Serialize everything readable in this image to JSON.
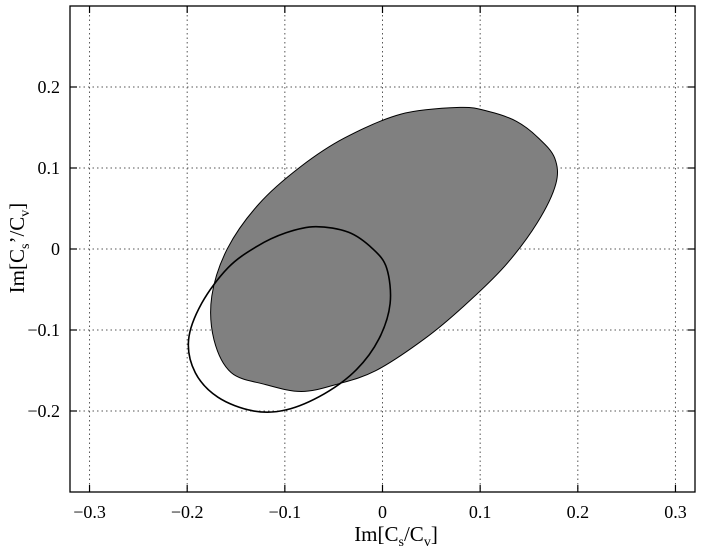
{
  "chart_data": {
    "type": "scatter",
    "title": "",
    "xlabel": {
      "prefix": "Im[C",
      "sub1": "s",
      "mid": "/C",
      "sub2": "v",
      "suffix": "]"
    },
    "ylabel": {
      "prefix": "Im[C",
      "sub1": "s",
      "mid": "’/C",
      "sub2": "v",
      "suffix": "]"
    },
    "xlim": [
      -0.32,
      0.32
    ],
    "ylim": [
      -0.3,
      0.3
    ],
    "grid": true,
    "grid_style": "dotted",
    "xticks": [
      -0.3,
      -0.2,
      -0.1,
      0,
      0.1,
      0.2,
      0.3
    ],
    "xtick_labels": [
      "−0.3",
      "−0.2",
      "−0.1",
      "0",
      "0.1",
      "0.2",
      "0.3"
    ],
    "yticks": [
      -0.2,
      -0.1,
      0,
      0.1,
      0.2
    ],
    "ytick_labels": [
      "−0.2",
      "−0.1",
      "0",
      "0.1",
      "0.2"
    ],
    "regions": [
      {
        "shape": "ellipse",
        "fill": true,
        "fill_color": "#808080",
        "edge_color": "#000000",
        "points": [
          [
            0.0794,
            0.1748
          ],
          [
            0.1084,
            0.1699
          ],
          [
            0.1373,
            0.1575
          ],
          [
            0.1601,
            0.1366
          ],
          [
            0.1763,
            0.1122
          ],
          [
            0.1775,
            0.0802
          ],
          [
            0.1584,
            0.0322
          ],
          [
            0.1251,
            -0.0212
          ],
          [
            0.0833,
            -0.0705
          ],
          [
            0.043,
            -0.1109
          ],
          [
            -0.007,
            -0.1502
          ],
          [
            -0.0479,
            -0.1674
          ],
          [
            -0.0832,
            -0.1759
          ],
          [
            -0.1196,
            -0.1674
          ],
          [
            -0.1549,
            -0.1526
          ],
          [
            -0.1725,
            -0.1122
          ],
          [
            -0.1748,
            -0.0582
          ],
          [
            -0.1589,
            0.0002
          ],
          [
            -0.1266,
            0.0556
          ],
          [
            -0.0843,
            0.1012
          ],
          [
            -0.0391,
            0.1369
          ],
          [
            0.0189,
            0.1665
          ]
        ]
      },
      {
        "shape": "ellipse",
        "fill": false,
        "fill_color": "none",
        "edge_color": "#000000",
        "points": [
          [
            -0.0686,
            0.0275
          ],
          [
            -0.0347,
            0.0206
          ],
          [
            -0.01,
            0.0002
          ],
          [
            0.0043,
            -0.0237
          ],
          [
            0.0078,
            -0.0675
          ],
          [
            -0.0036,
            -0.1109
          ],
          [
            -0.0267,
            -0.149
          ],
          [
            -0.0598,
            -0.1789
          ],
          [
            -0.0988,
            -0.1987
          ],
          [
            -0.1328,
            -0.1998
          ],
          [
            -0.1685,
            -0.183
          ],
          [
            -0.1917,
            -0.1527
          ],
          [
            -0.1986,
            -0.1122
          ],
          [
            -0.1851,
            -0.067
          ],
          [
            -0.158,
            -0.023
          ],
          [
            -0.1284,
            0.0033
          ],
          [
            -0.0988,
            0.02
          ]
        ]
      }
    ]
  }
}
